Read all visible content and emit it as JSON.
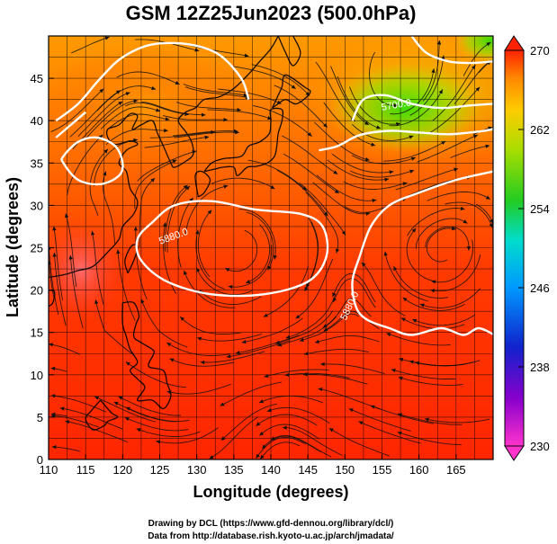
{
  "title": "GSM 12Z25Jun2023 (500.0hPa)",
  "x_axis": {
    "label": "Longitude (degrees)",
    "range": [
      110,
      170
    ],
    "ticks": [
      "110",
      "115",
      "120",
      "125",
      "130",
      "135",
      "140",
      "145",
      "150",
      "155",
      "160",
      "165"
    ]
  },
  "y_axis": {
    "label": "Latitude  (degrees)",
    "range": [
      0,
      50
    ],
    "ticks": [
      "0",
      "5",
      "10",
      "15",
      "20",
      "25",
      "30",
      "35",
      "40",
      "45"
    ]
  },
  "colorbar": {
    "range": [
      230,
      270
    ],
    "ticks": [
      "230",
      "238",
      "246",
      "254",
      "262",
      "270"
    ]
  },
  "contour_labels": [
    {
      "text": "5880.0",
      "lon": 127,
      "lat": 26,
      "angle": -20
    },
    {
      "text": "5880.0",
      "lon": 151,
      "lat": 18,
      "angle": -65
    },
    {
      "text": "5700.0",
      "lon": 157,
      "lat": 41.5,
      "angle": -10
    }
  ],
  "credits": {
    "line1": "Drawing by DCL (https://www.gfd-dennou.org/library/dcl/)",
    "line2": "Data from http://database.rish.kyoto-u.ac.jp/arch/jmadata/"
  },
  "colors": {
    "warm": "#ff2a00",
    "orange": "#ff9900",
    "yellow": "#e6e600",
    "green": "#44dd00"
  }
}
